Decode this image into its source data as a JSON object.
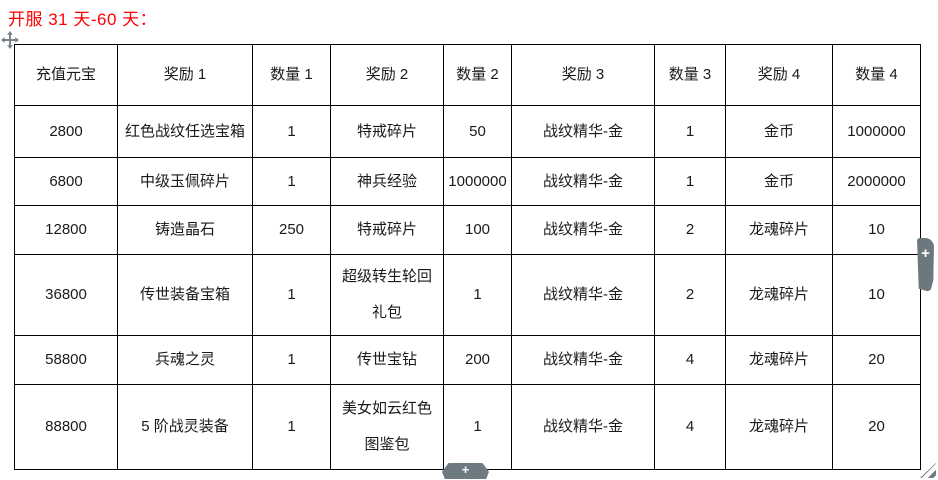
{
  "page": {
    "title": "开服 31 天-60 天："
  },
  "table": {
    "headers": [
      "充值元宝",
      "奖励 1",
      "数量 1",
      "奖励 2",
      "数量 2",
      "奖励 3",
      "数量 3",
      "奖励 4",
      "数量 4"
    ],
    "rows": [
      [
        "2800",
        "红色战纹任选宝箱",
        "1",
        "特戒碎片",
        "50",
        "战纹精华-金",
        "1",
        "金币",
        "1000000"
      ],
      [
        "6800",
        "中级玉佩碎片",
        "1",
        "神兵经验",
        "1000000",
        "战纹精华-金",
        "1",
        "金币",
        "2000000"
      ],
      [
        "12800",
        "铸造晶石",
        "250",
        "特戒碎片",
        "100",
        "战纹精华-金",
        "2",
        "龙魂碎片",
        "10"
      ],
      [
        "36800",
        "传世装备宝箱",
        "1",
        "超级转生轮回礼包",
        "1",
        "战纹精华-金",
        "2",
        "龙魂碎片",
        "10"
      ],
      [
        "58800",
        "兵魂之灵",
        "1",
        "传世宝钻",
        "200",
        "战纹精华-金",
        "4",
        "龙魂碎片",
        "20"
      ],
      [
        "88800",
        "5 阶战灵装备",
        "1",
        "美女如云红色图鉴包",
        "1",
        "战纹精华-金",
        "4",
        "龙魂碎片",
        "20"
      ]
    ]
  },
  "controls": {
    "move_handle_icon": "table-move-icon",
    "right_scroll_button_label": "+",
    "bottom_scroll_button_label": "+",
    "resize_grip_icon": "table-resize-grip-icon"
  },
  "colors": {
    "title_red": "#ff0000",
    "table_border": "#000000",
    "cell_text": "#1a1a1a",
    "control_gray": "#6e7a82"
  }
}
